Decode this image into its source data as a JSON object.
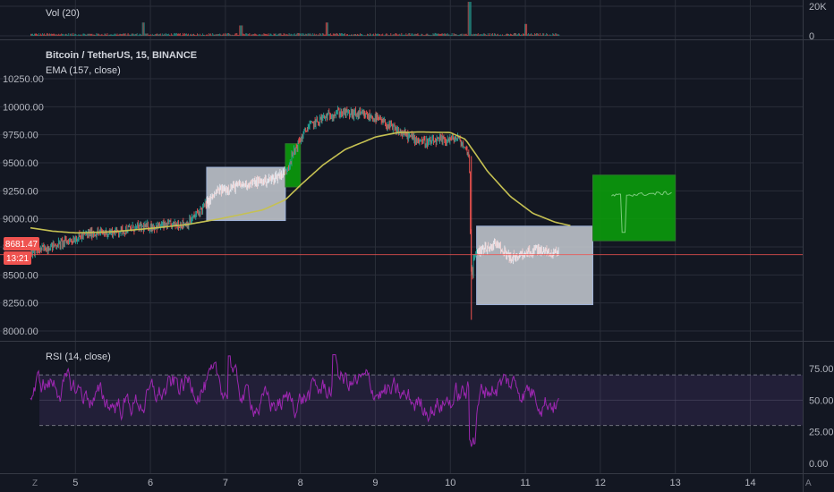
{
  "volume_pane": {
    "title": "Vol (20)",
    "ticks": [
      "20K",
      "0"
    ]
  },
  "price_pane": {
    "symbol_title": "Bitcoin / TetherUS, 15, BINANCE",
    "indicator_title": "EMA (157, close)",
    "ticks": [
      "10250.00",
      "10000.00",
      "9750.00",
      "9500.00",
      "9250.00",
      "9000.00",
      "8750.00",
      "8500.00",
      "8250.00",
      "8000.00"
    ],
    "last_price_label": "8681.47",
    "countdown_label": "13:21"
  },
  "rsi_pane": {
    "title": "RSI (14, close)",
    "ticks": [
      "75.00",
      "50.00",
      "25.00",
      "0.00"
    ]
  },
  "time_axis": {
    "ticks": [
      "5",
      "6",
      "7",
      "8",
      "9",
      "10",
      "11",
      "12",
      "13",
      "14"
    ],
    "left_button": "Z",
    "right_button": "A"
  },
  "colors": {
    "background": "#131722",
    "grid": "#2a2e39",
    "up_candle": "#26a69a",
    "down_candle": "#ef5350",
    "ema_line": "#c5c052",
    "rsi_line": "#9c27b0",
    "rsi_band": "#7e57c2",
    "gray_box": "#c8ccd4",
    "green_box": "#0b9b0b",
    "price_marker": "#ef5350"
  },
  "chart_data": [
    {
      "type": "line",
      "name": "price",
      "x_range_days": [
        4.4,
        14.6
      ],
      "y_range": [
        7950,
        10300
      ],
      "price_path": [
        [
          4.4,
          8700
        ],
        [
          4.8,
          8780
        ],
        [
          5.2,
          8870
        ],
        [
          5.5,
          8880
        ],
        [
          5.8,
          8920
        ],
        [
          6.2,
          8940
        ],
        [
          6.5,
          8960
        ],
        [
          6.7,
          9100
        ],
        [
          6.9,
          9250
        ],
        [
          7.2,
          9300
        ],
        [
          7.6,
          9350
        ],
        [
          7.8,
          9420
        ],
        [
          7.95,
          9650
        ],
        [
          8.1,
          9820
        ],
        [
          8.3,
          9900
        ],
        [
          8.5,
          9950
        ],
        [
          8.8,
          9930
        ],
        [
          9.0,
          9900
        ],
        [
          9.3,
          9780
        ],
        [
          9.5,
          9720
        ],
        [
          9.7,
          9680
        ],
        [
          9.9,
          9700
        ],
        [
          10.1,
          9720
        ],
        [
          10.25,
          9580
        ],
        [
          10.28,
          8620
        ],
        [
          10.4,
          8720
        ],
        [
          10.6,
          8780
        ],
        [
          10.8,
          8650
        ],
        [
          11.0,
          8700
        ],
        [
          11.2,
          8720
        ],
        [
          11.45,
          8690
        ]
      ],
      "ema_path": [
        [
          4.4,
          8920
        ],
        [
          4.7,
          8890
        ],
        [
          5.0,
          8875
        ],
        [
          5.5,
          8885
        ],
        [
          6.0,
          8915
        ],
        [
          6.5,
          8950
        ],
        [
          7.0,
          9010
        ],
        [
          7.5,
          9080
        ],
        [
          7.8,
          9170
        ],
        [
          8.0,
          9300
        ],
        [
          8.3,
          9480
        ],
        [
          8.6,
          9620
        ],
        [
          9.0,
          9730
        ],
        [
          9.3,
          9770
        ],
        [
          9.6,
          9775
        ],
        [
          10.0,
          9770
        ],
        [
          10.2,
          9710
        ],
        [
          10.5,
          9420
        ],
        [
          10.8,
          9200
        ],
        [
          11.1,
          9050
        ],
        [
          11.4,
          8970
        ],
        [
          11.6,
          8940
        ]
      ],
      "last_price": 8681.47,
      "boxes": [
        {
          "color": "gray",
          "x": [
            6.75,
            7.8
          ],
          "y": [
            8985,
            9460
          ]
        },
        {
          "color": "green",
          "x": [
            7.8,
            8.0
          ],
          "y": [
            9285,
            9670
          ]
        },
        {
          "color": "gray",
          "x": [
            10.35,
            11.9
          ],
          "y": [
            8235,
            8935
          ]
        },
        {
          "color": "green",
          "x": [
            11.9,
            13.0
          ],
          "y": [
            8805,
            9390
          ]
        }
      ]
    },
    {
      "type": "line",
      "name": "RSI",
      "y_range": [
        0,
        100
      ],
      "bands": [
        30,
        50,
        70
      ],
      "x_range_days": [
        4.4,
        11.45
      ]
    },
    {
      "type": "bar",
      "name": "volume",
      "y_range": [
        0,
        20000
      ],
      "spikes": [
        [
          5.9,
          9000
        ],
        [
          7.2,
          7000
        ],
        [
          8.35,
          9000
        ],
        [
          10.25,
          23000
        ],
        [
          11.0,
          8000
        ]
      ]
    }
  ]
}
